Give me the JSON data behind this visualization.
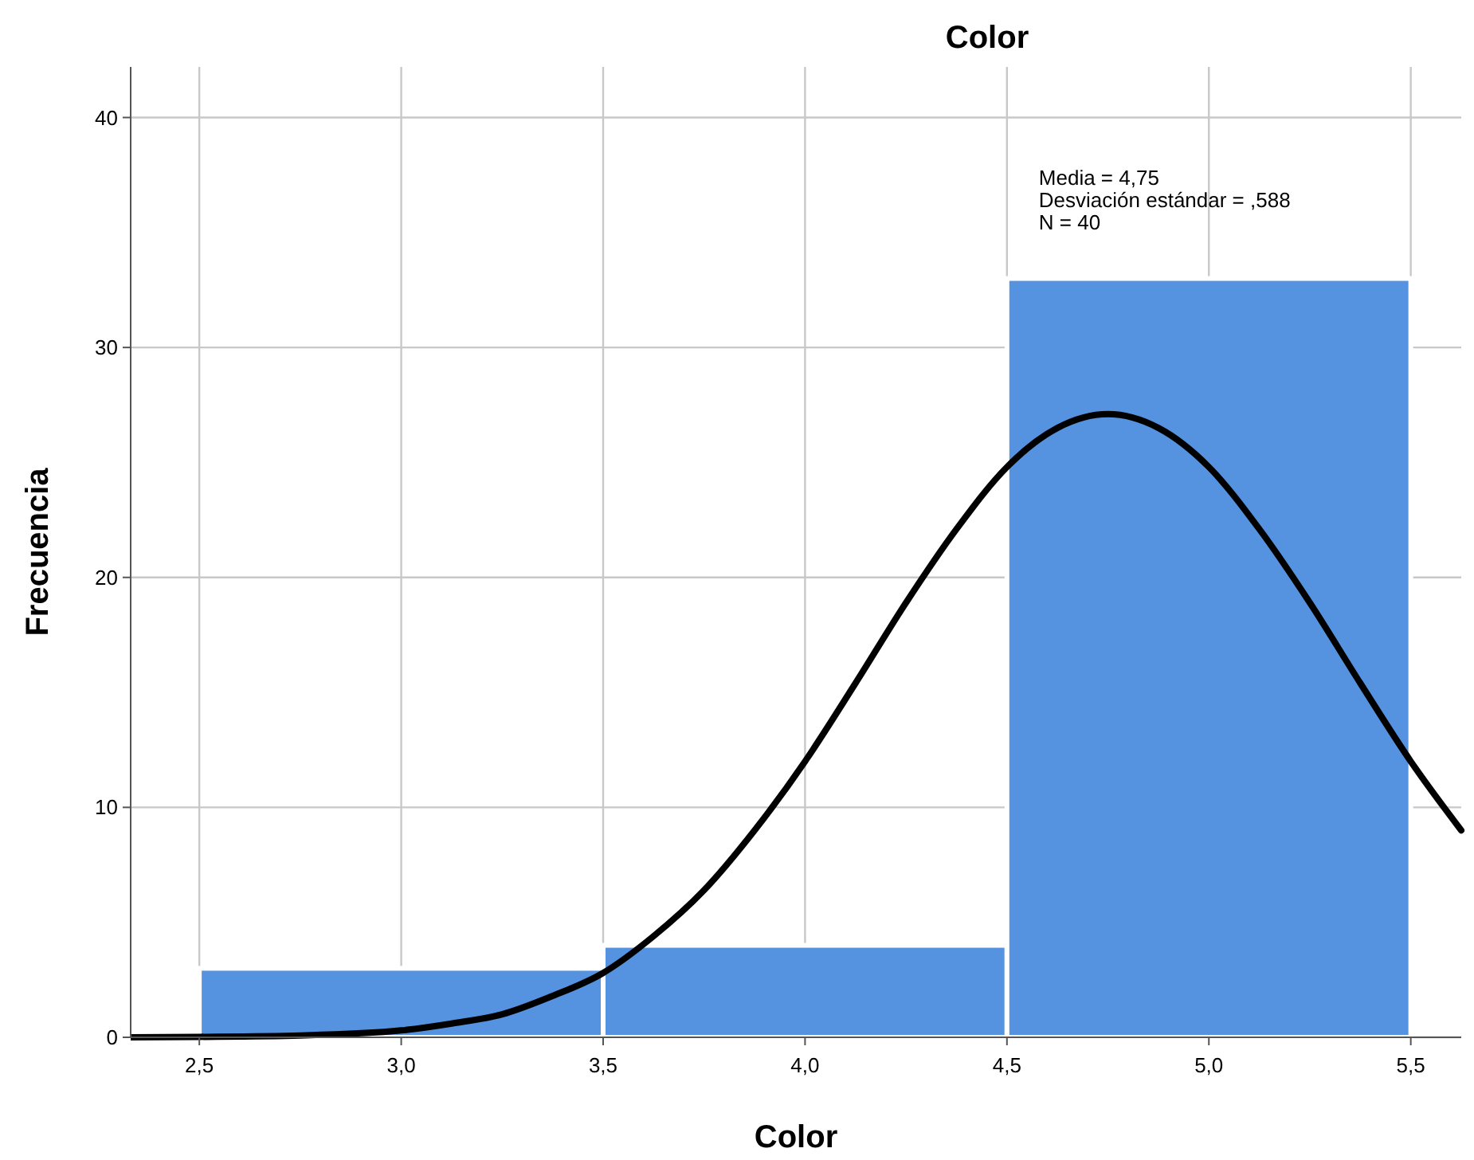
{
  "chart_data": {
    "type": "histogram",
    "title": "Color",
    "xlabel": "Color",
    "ylabel": "Frecuencia",
    "bins": [
      2.5,
      3.5,
      4.5,
      5.5
    ],
    "series": [
      {
        "color": "#5592e0",
        "values": [
          3,
          4,
          33
        ]
      },
      {
        "type": "line",
        "color": "#000000",
        "x": [
          2.33,
          2.5,
          2.75,
          3.0,
          3.125,
          3.25,
          3.375,
          3.5,
          3.625,
          3.75,
          3.875,
          4.0,
          4.125,
          4.25,
          4.375,
          4.5,
          4.625,
          4.75,
          4.875,
          5.0,
          5.125,
          5.25,
          5.375,
          5.5,
          5.625
        ],
        "values": [
          0.0,
          0.02,
          0.08,
          0.3,
          0.6,
          1.0,
          1.8,
          2.8,
          4.4,
          6.4,
          9.0,
          12.0,
          15.4,
          18.9,
          22.1,
          24.8,
          26.5,
          27.1,
          26.5,
          24.8,
          22.1,
          18.9,
          15.4,
          12.0,
          9.0
        ]
      }
    ],
    "annotations": [
      "Media = 4,75",
      "Desviación estándar = ,588",
      "N = 40"
    ],
    "xlim": [
      2.33,
      5.625
    ],
    "xticks": [
      {
        "value": 2.5,
        "label": "2,5"
      },
      {
        "value": 3,
        "label": "3,0"
      },
      {
        "value": 3.5,
        "label": "3,5"
      },
      {
        "value": 4,
        "label": "4,0"
      },
      {
        "value": 4.5,
        "label": "4,5"
      },
      {
        "value": 5,
        "label": "5,0"
      },
      {
        "value": 5.5,
        "label": "5,5"
      }
    ],
    "ylim": [
      0,
      42.2
    ],
    "yticks": [
      0,
      10,
      20,
      30,
      40
    ],
    "grid": true,
    "marker": "none",
    "line_style": "solid"
  }
}
